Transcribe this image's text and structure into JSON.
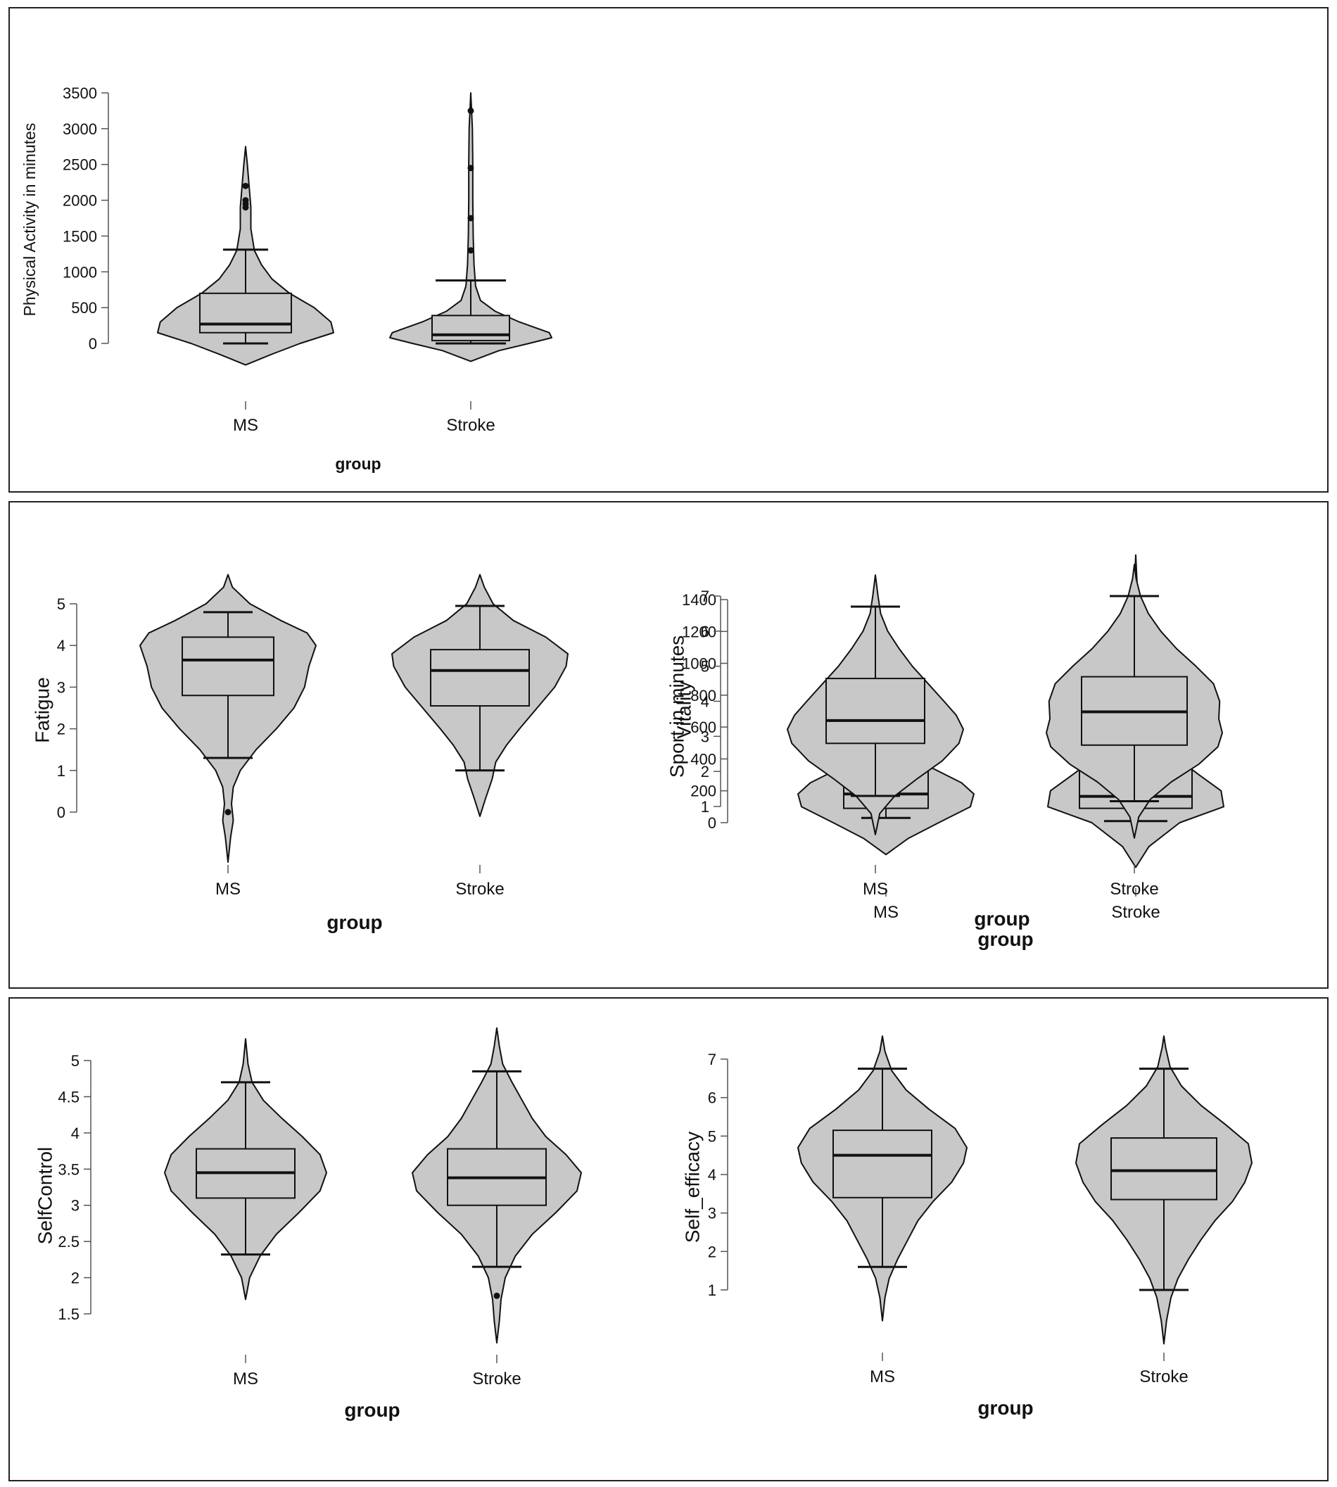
{
  "chart_data": [
    {
      "type": "violin",
      "ylabel": "Physical Activity in minutes",
      "xlabel": "group",
      "yticks": [
        0,
        500,
        1000,
        1500,
        2000,
        2500,
        3000,
        3500
      ],
      "ylim": [
        0,
        3500
      ],
      "categories": [
        "MS",
        "Stroke"
      ],
      "groups": [
        {
          "name": "MS",
          "min": 0,
          "q1": 150,
          "median": 270,
          "q3": 700,
          "max": 1310,
          "density": [
            [
              -300,
              0
            ],
            [
              -150,
              0.3
            ],
            [
              0,
              0.62
            ],
            [
              150,
              1.0
            ],
            [
              300,
              0.97
            ],
            [
              500,
              0.78
            ],
            [
              700,
              0.5
            ],
            [
              900,
              0.3
            ],
            [
              1100,
              0.18
            ],
            [
              1300,
              0.1
            ],
            [
              1600,
              0.06
            ],
            [
              1900,
              0.06
            ],
            [
              2200,
              0.04
            ],
            [
              2500,
              0.02
            ],
            [
              2750,
              0
            ]
          ],
          "outliers": [
            1900,
            1950,
            2000,
            2200
          ]
        },
        {
          "name": "Stroke",
          "min": 0,
          "q1": 40,
          "median": 120,
          "q3": 390,
          "max": 880,
          "density": [
            [
              -250,
              0
            ],
            [
              -100,
              0.35
            ],
            [
              0,
              0.72
            ],
            [
              80,
              1.0
            ],
            [
              150,
              0.97
            ],
            [
              300,
              0.6
            ],
            [
              450,
              0.3
            ],
            [
              600,
              0.12
            ],
            [
              800,
              0.06
            ],
            [
              1100,
              0.04
            ],
            [
              1500,
              0.03
            ],
            [
              2000,
              0.025
            ],
            [
              2500,
              0.025
            ],
            [
              3000,
              0.02
            ],
            [
              3500,
              0
            ]
          ],
          "outliers": [
            1300,
            1750,
            2450,
            3250
          ]
        }
      ]
    },
    {
      "type": "violin",
      "ylabel": "Sport in minutes",
      "xlabel": "group",
      "yticks": [
        0,
        200,
        400,
        600,
        800,
        1000,
        1200,
        1400
      ],
      "ylim": [
        0,
        1400
      ],
      "categories": [
        "MS",
        "Stroke"
      ],
      "groups": [
        {
          "name": "MS",
          "min": 30,
          "q1": 90,
          "median": 180,
          "q3": 330,
          "max": 480,
          "density": [
            [
              -200,
              0
            ],
            [
              -100,
              0.25
            ],
            [
              0,
              0.6
            ],
            [
              100,
              0.96
            ],
            [
              180,
              1.0
            ],
            [
              250,
              0.86
            ],
            [
              350,
              0.5
            ],
            [
              450,
              0.25
            ],
            [
              550,
              0.12
            ],
            [
              650,
              0.13
            ],
            [
              750,
              0.16
            ],
            [
              850,
              0.12
            ],
            [
              950,
              0.06
            ],
            [
              1050,
              0.03
            ],
            [
              1130,
              0
            ]
          ],
          "outliers": [
            760,
            900
          ]
        },
        {
          "name": "Stroke",
          "min": 10,
          "q1": 90,
          "median": 165,
          "q3": 420,
          "max": 740,
          "density": [
            [
              -280,
              0
            ],
            [
              -150,
              0.15
            ],
            [
              0,
              0.5
            ],
            [
              100,
              1.0
            ],
            [
              200,
              0.97
            ],
            [
              300,
              0.72
            ],
            [
              400,
              0.48
            ],
            [
              550,
              0.3
            ],
            [
              700,
              0.17
            ],
            [
              850,
              0.08
            ],
            [
              1000,
              0.04
            ],
            [
              1150,
              0.02
            ],
            [
              1300,
              0.03
            ],
            [
              1400,
              0.035
            ],
            [
              1500,
              0.015
            ],
            [
              1680,
              0
            ]
          ],
          "outliers": [
            1380
          ]
        }
      ]
    },
    {
      "type": "violin",
      "ylabel": "Fatigue",
      "xlabel": "group",
      "yticks": [
        0,
        1,
        2,
        3,
        4,
        5
      ],
      "ylim": [
        0,
        5
      ],
      "categories": [
        "MS",
        "Stroke"
      ],
      "groups": [
        {
          "name": "MS",
          "min": 1.3,
          "q1": 2.8,
          "median": 3.65,
          "q3": 4.2,
          "max": 4.8,
          "density": [
            [
              -1.2,
              0
            ],
            [
              -0.6,
              0.03
            ],
            [
              -0.2,
              0.06
            ],
            [
              0.2,
              0.04
            ],
            [
              0.6,
              0.06
            ],
            [
              1.0,
              0.14
            ],
            [
              1.5,
              0.32
            ],
            [
              2.0,
              0.55
            ],
            [
              2.5,
              0.75
            ],
            [
              3.0,
              0.87
            ],
            [
              3.5,
              0.92
            ],
            [
              4.0,
              1.0
            ],
            [
              4.3,
              0.9
            ],
            [
              4.6,
              0.6
            ],
            [
              5.0,
              0.25
            ],
            [
              5.4,
              0.05
            ],
            [
              5.7,
              0
            ]
          ],
          "outliers": [
            0
          ]
        },
        {
          "name": "Stroke",
          "min": 1.0,
          "q1": 2.55,
          "median": 3.4,
          "q3": 3.9,
          "max": 4.95,
          "density": [
            [
              -0.1,
              0
            ],
            [
              0.3,
              0.06
            ],
            [
              0.8,
              0.14
            ],
            [
              1.2,
              0.18
            ],
            [
              1.6,
              0.3
            ],
            [
              2.0,
              0.45
            ],
            [
              2.5,
              0.65
            ],
            [
              3.0,
              0.85
            ],
            [
              3.5,
              0.98
            ],
            [
              3.8,
              1.0
            ],
            [
              4.2,
              0.75
            ],
            [
              4.6,
              0.38
            ],
            [
              5.0,
              0.15
            ],
            [
              5.4,
              0.05
            ],
            [
              5.7,
              0
            ]
          ],
          "outliers": []
        }
      ]
    },
    {
      "type": "violin",
      "ylabel": "Vitality",
      "xlabel": "group",
      "yticks": [
        1,
        2,
        3,
        4,
        5,
        6,
        7
      ],
      "ylim": [
        1,
        7
      ],
      "categories": [
        "MS",
        "Stroke"
      ],
      "groups": [
        {
          "name": "MS",
          "min": 1.3,
          "q1": 2.8,
          "median": 3.45,
          "q3": 4.65,
          "max": 6.7,
          "density": [
            [
              0.2,
              0
            ],
            [
              0.8,
              0.05
            ],
            [
              1.3,
              0.22
            ],
            [
              1.8,
              0.48
            ],
            [
              2.3,
              0.76
            ],
            [
              2.8,
              0.95
            ],
            [
              3.2,
              1.0
            ],
            [
              3.6,
              0.92
            ],
            [
              4.0,
              0.78
            ],
            [
              4.5,
              0.6
            ],
            [
              5.0,
              0.42
            ],
            [
              5.5,
              0.27
            ],
            [
              6.0,
              0.14
            ],
            [
              6.5,
              0.06
            ],
            [
              7.0,
              0.03
            ],
            [
              7.6,
              0
            ]
          ],
          "outliers": []
        },
        {
          "name": "Stroke",
          "min": 1.15,
          "q1": 2.75,
          "median": 3.7,
          "q3": 4.7,
          "max": 7.0,
          "density": [
            [
              0.1,
              0
            ],
            [
              0.7,
              0.05
            ],
            [
              1.2,
              0.18
            ],
            [
              1.7,
              0.42
            ],
            [
              2.2,
              0.73
            ],
            [
              2.7,
              0.95
            ],
            [
              3.1,
              1.0
            ],
            [
              3.5,
              0.96
            ],
            [
              4.0,
              0.97
            ],
            [
              4.5,
              0.9
            ],
            [
              5.0,
              0.7
            ],
            [
              5.5,
              0.48
            ],
            [
              6.0,
              0.3
            ],
            [
              6.5,
              0.16
            ],
            [
              7.0,
              0.07
            ],
            [
              7.5,
              0.02
            ],
            [
              7.9,
              0
            ]
          ],
          "outliers": []
        }
      ]
    },
    {
      "type": "violin",
      "ylabel": "SelfControl",
      "xlabel": "group",
      "yticks": [
        1.5,
        2.0,
        2.5,
        3.0,
        3.5,
        4.0,
        4.5,
        5.0
      ],
      "ylim": [
        1.5,
        5.0
      ],
      "categories": [
        "MS",
        "Stroke"
      ],
      "groups": [
        {
          "name": "MS",
          "min": 2.32,
          "q1": 3.1,
          "median": 3.45,
          "q3": 3.78,
          "max": 4.7,
          "density": [
            [
              1.7,
              0
            ],
            [
              2.0,
              0.05
            ],
            [
              2.3,
              0.18
            ],
            [
              2.6,
              0.38
            ],
            [
              2.9,
              0.66
            ],
            [
              3.2,
              0.92
            ],
            [
              3.45,
              1.0
            ],
            [
              3.7,
              0.92
            ],
            [
              3.95,
              0.7
            ],
            [
              4.2,
              0.45
            ],
            [
              4.45,
              0.22
            ],
            [
              4.7,
              0.08
            ],
            [
              4.95,
              0.03
            ],
            [
              5.3,
              0
            ]
          ],
          "outliers": []
        },
        {
          "name": "Stroke",
          "min": 2.15,
          "q1": 3.0,
          "median": 3.38,
          "q3": 3.78,
          "max": 4.85,
          "density": [
            [
              1.1,
              0
            ],
            [
              1.4,
              0.03
            ],
            [
              1.7,
              0.05
            ],
            [
              2.0,
              0.1
            ],
            [
              2.3,
              0.22
            ],
            [
              2.6,
              0.42
            ],
            [
              2.9,
              0.7
            ],
            [
              3.2,
              0.95
            ],
            [
              3.45,
              1.0
            ],
            [
              3.7,
              0.82
            ],
            [
              3.95,
              0.58
            ],
            [
              4.2,
              0.42
            ],
            [
              4.45,
              0.3
            ],
            [
              4.7,
              0.18
            ],
            [
              4.95,
              0.07
            ],
            [
              5.2,
              0.03
            ],
            [
              5.45,
              0
            ]
          ],
          "outliers": [
            1.75
          ]
        }
      ]
    },
    {
      "type": "violin",
      "ylabel": "Self_efficacy",
      "xlabel": "group",
      "yticks": [
        1,
        2,
        3,
        4,
        5,
        6,
        7
      ],
      "ylim": [
        1,
        7
      ],
      "categories": [
        "MS",
        "Stroke"
      ],
      "groups": [
        {
          "name": "MS",
          "min": 1.6,
          "q1": 3.4,
          "median": 4.5,
          "q3": 5.15,
          "max": 6.75,
          "density": [
            [
              0.2,
              0
            ],
            [
              0.8,
              0.03
            ],
            [
              1.3,
              0.08
            ],
            [
              1.8,
              0.18
            ],
            [
              2.3,
              0.3
            ],
            [
              2.8,
              0.42
            ],
            [
              3.3,
              0.6
            ],
            [
              3.8,
              0.82
            ],
            [
              4.3,
              0.96
            ],
            [
              4.7,
              1.0
            ],
            [
              5.2,
              0.86
            ],
            [
              5.7,
              0.55
            ],
            [
              6.2,
              0.28
            ],
            [
              6.7,
              0.11
            ],
            [
              7.2,
              0.03
            ],
            [
              7.6,
              0
            ]
          ],
          "outliers": []
        },
        {
          "name": "Stroke",
          "min": 1.0,
          "q1": 3.35,
          "median": 4.1,
          "q3": 4.95,
          "max": 6.75,
          "density": [
            [
              -0.4,
              0
            ],
            [
              0.2,
              0.03
            ],
            [
              0.8,
              0.08
            ],
            [
              1.3,
              0.16
            ],
            [
              1.8,
              0.28
            ],
            [
              2.3,
              0.42
            ],
            [
              2.8,
              0.58
            ],
            [
              3.3,
              0.78
            ],
            [
              3.8,
              0.92
            ],
            [
              4.3,
              1.0
            ],
            [
              4.8,
              0.96
            ],
            [
              5.3,
              0.7
            ],
            [
              5.8,
              0.42
            ],
            [
              6.3,
              0.2
            ],
            [
              6.8,
              0.07
            ],
            [
              7.3,
              0.02
            ],
            [
              7.6,
              0
            ]
          ],
          "outliers": []
        }
      ]
    }
  ]
}
